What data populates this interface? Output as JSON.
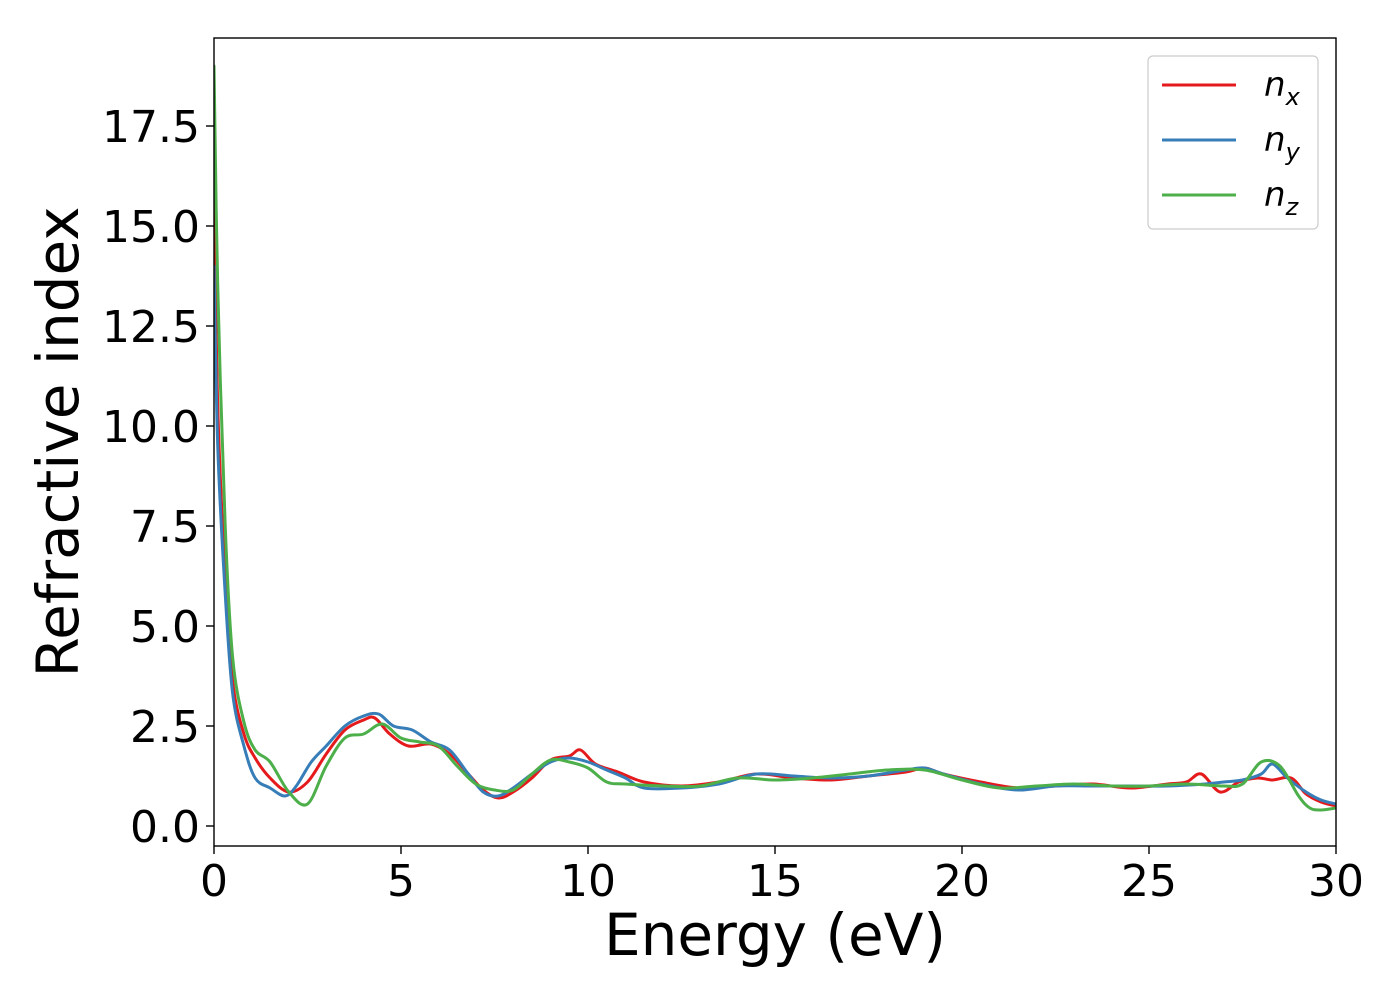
{
  "chart_data": {
    "type": "line",
    "title": "",
    "xlabel": "Energy (eV)",
    "ylabel": "Refractive index",
    "xlim": [
      0,
      30
    ],
    "ylim": [
      -0.5,
      19.7
    ],
    "xticks": [
      0,
      5,
      10,
      15,
      20,
      25,
      30
    ],
    "xtick_labels": [
      "0",
      "5",
      "10",
      "15",
      "20",
      "25",
      "30"
    ],
    "yticks": [
      0.0,
      2.5,
      5.0,
      7.5,
      10.0,
      12.5,
      15.0,
      17.5
    ],
    "ytick_labels": [
      "0.0",
      "2.5",
      "5.0",
      "7.5",
      "10.0",
      "12.5",
      "15.0",
      "17.5"
    ],
    "grid": false,
    "legend_position": "top-right",
    "series": [
      {
        "name": "n_x",
        "label_base": "n",
        "label_sub": "x",
        "color": "#e41a1c",
        "x": [
          0,
          0.1,
          0.3,
          0.5,
          0.8,
          1.1,
          1.5,
          2.0,
          2.5,
          3.0,
          3.5,
          4.0,
          4.3,
          4.7,
          5.2,
          5.8,
          6.3,
          6.8,
          7.2,
          7.6,
          8.0,
          8.5,
          9.0,
          9.5,
          9.8,
          10.2,
          10.8,
          11.5,
          12.5,
          13.5,
          14.5,
          15.5,
          16.5,
          17.5,
          18.5,
          19.0,
          19.5,
          20.5,
          21.5,
          22.5,
          23.5,
          24.5,
          25.5,
          26.0,
          26.4,
          26.9,
          27.4,
          27.9,
          28.3,
          28.8,
          29.2,
          29.6,
          30.0
        ],
        "y": [
          16.0,
          10.5,
          6.2,
          3.6,
          2.3,
          1.7,
          1.2,
          0.85,
          1.1,
          1.8,
          2.4,
          2.65,
          2.7,
          2.3,
          2.0,
          2.05,
          1.8,
          1.3,
          0.9,
          0.7,
          0.85,
          1.2,
          1.65,
          1.75,
          1.9,
          1.55,
          1.35,
          1.1,
          1.0,
          1.1,
          1.3,
          1.2,
          1.15,
          1.25,
          1.35,
          1.45,
          1.3,
          1.1,
          0.95,
          1.0,
          1.05,
          0.95,
          1.05,
          1.1,
          1.3,
          0.85,
          1.1,
          1.2,
          1.15,
          1.2,
          0.8,
          0.6,
          0.5
        ]
      },
      {
        "name": "n_y",
        "label_base": "n",
        "label_sub": "y",
        "color": "#377eb8",
        "x": [
          0,
          0.1,
          0.3,
          0.5,
          0.8,
          1.1,
          1.5,
          1.9,
          2.2,
          2.6,
          3.0,
          3.5,
          4.0,
          4.4,
          4.8,
          5.3,
          5.8,
          6.3,
          6.8,
          7.2,
          7.6,
          8.0,
          8.5,
          9.0,
          9.5,
          10.0,
          10.5,
          11.0,
          11.5,
          12.5,
          13.5,
          14.5,
          15.5,
          16.5,
          17.5,
          18.5,
          19.0,
          19.5,
          20.5,
          21.5,
          22.5,
          23.5,
          24.5,
          25.5,
          26.5,
          27.0,
          27.5,
          28.0,
          28.3,
          28.7,
          29.2,
          29.6,
          30.0
        ],
        "y": [
          14.0,
          9.5,
          5.8,
          3.3,
          2.0,
          1.2,
          0.95,
          0.75,
          1.0,
          1.6,
          2.0,
          2.5,
          2.75,
          2.8,
          2.5,
          2.4,
          2.1,
          1.9,
          1.3,
          0.85,
          0.75,
          0.95,
          1.3,
          1.6,
          1.7,
          1.6,
          1.4,
          1.2,
          0.95,
          0.95,
          1.05,
          1.3,
          1.25,
          1.2,
          1.25,
          1.4,
          1.45,
          1.3,
          1.05,
          0.9,
          1.0,
          1.0,
          1.0,
          1.0,
          1.05,
          1.1,
          1.15,
          1.3,
          1.55,
          1.2,
          0.85,
          0.65,
          0.55
        ]
      },
      {
        "name": "n_z",
        "label_base": "n",
        "label_sub": "z",
        "color": "#4daf4a",
        "x": [
          0,
          0.1,
          0.3,
          0.5,
          0.8,
          1.1,
          1.5,
          2.0,
          2.5,
          3.0,
          3.5,
          4.0,
          4.5,
          5.0,
          5.5,
          6.0,
          6.5,
          7.0,
          7.5,
          8.0,
          8.5,
          9.0,
          9.5,
          10.0,
          10.5,
          11.0,
          12.0,
          13.0,
          14.0,
          15.0,
          16.0,
          17.0,
          18.0,
          19.0,
          20.0,
          21.0,
          22.0,
          23.0,
          24.0,
          25.0,
          26.0,
          27.0,
          27.5,
          28.0,
          28.5,
          29.0,
          29.3,
          29.6,
          30.0
        ],
        "y": [
          19.0,
          13.5,
          7.5,
          4.2,
          2.6,
          1.9,
          1.6,
          0.85,
          0.55,
          1.5,
          2.2,
          2.3,
          2.55,
          2.2,
          2.1,
          2.0,
          1.5,
          1.05,
          0.9,
          0.9,
          1.3,
          1.65,
          1.6,
          1.45,
          1.1,
          1.05,
          1.0,
          1.0,
          1.2,
          1.15,
          1.2,
          1.3,
          1.4,
          1.4,
          1.15,
          0.95,
          1.0,
          1.05,
          1.0,
          1.0,
          1.05,
          1.0,
          1.05,
          1.6,
          1.5,
          0.75,
          0.45,
          0.4,
          0.45
        ]
      }
    ]
  }
}
